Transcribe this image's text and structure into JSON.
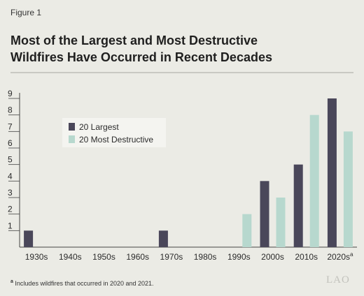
{
  "figure_label": "Figure 1",
  "title_line1": "Most of the Largest and Most Destructive",
  "title_line2": "Wildfires Have Occurred in Recent Decades",
  "footnote_marker": "a",
  "footnote_text": "Includes wildfires that occurred in 2020 and 2021.",
  "logo_text": "LAO",
  "colors": {
    "background": "#ebebe5",
    "largest": "#4a475a",
    "destructive": "#b7d8ce",
    "legend_box": "#f4f4f0",
    "gridline": "#cfcfc8"
  },
  "chart_data": {
    "type": "bar",
    "categories": [
      "1930s",
      "1940s",
      "1950s",
      "1960s",
      "1970s",
      "1980s",
      "1990s",
      "2000s",
      "2010s",
      "2020s"
    ],
    "category_superscripts": [
      "",
      "",
      "",
      "",
      "",
      "",
      "",
      "",
      "",
      "a"
    ],
    "series": [
      {
        "name": "20 Largest",
        "values": [
          1,
          0,
          0,
          0,
          1,
          0,
          0,
          4,
          5,
          9
        ]
      },
      {
        "name": "20 Most Destructive",
        "values": [
          0,
          0,
          0,
          0,
          0,
          0,
          2,
          3,
          8,
          7
        ]
      }
    ],
    "y_ticks": [
      1,
      2,
      3,
      4,
      5,
      6,
      7,
      8,
      9
    ],
    "ylim": [
      0,
      9
    ],
    "grid": false,
    "legend_position": "top-left"
  }
}
